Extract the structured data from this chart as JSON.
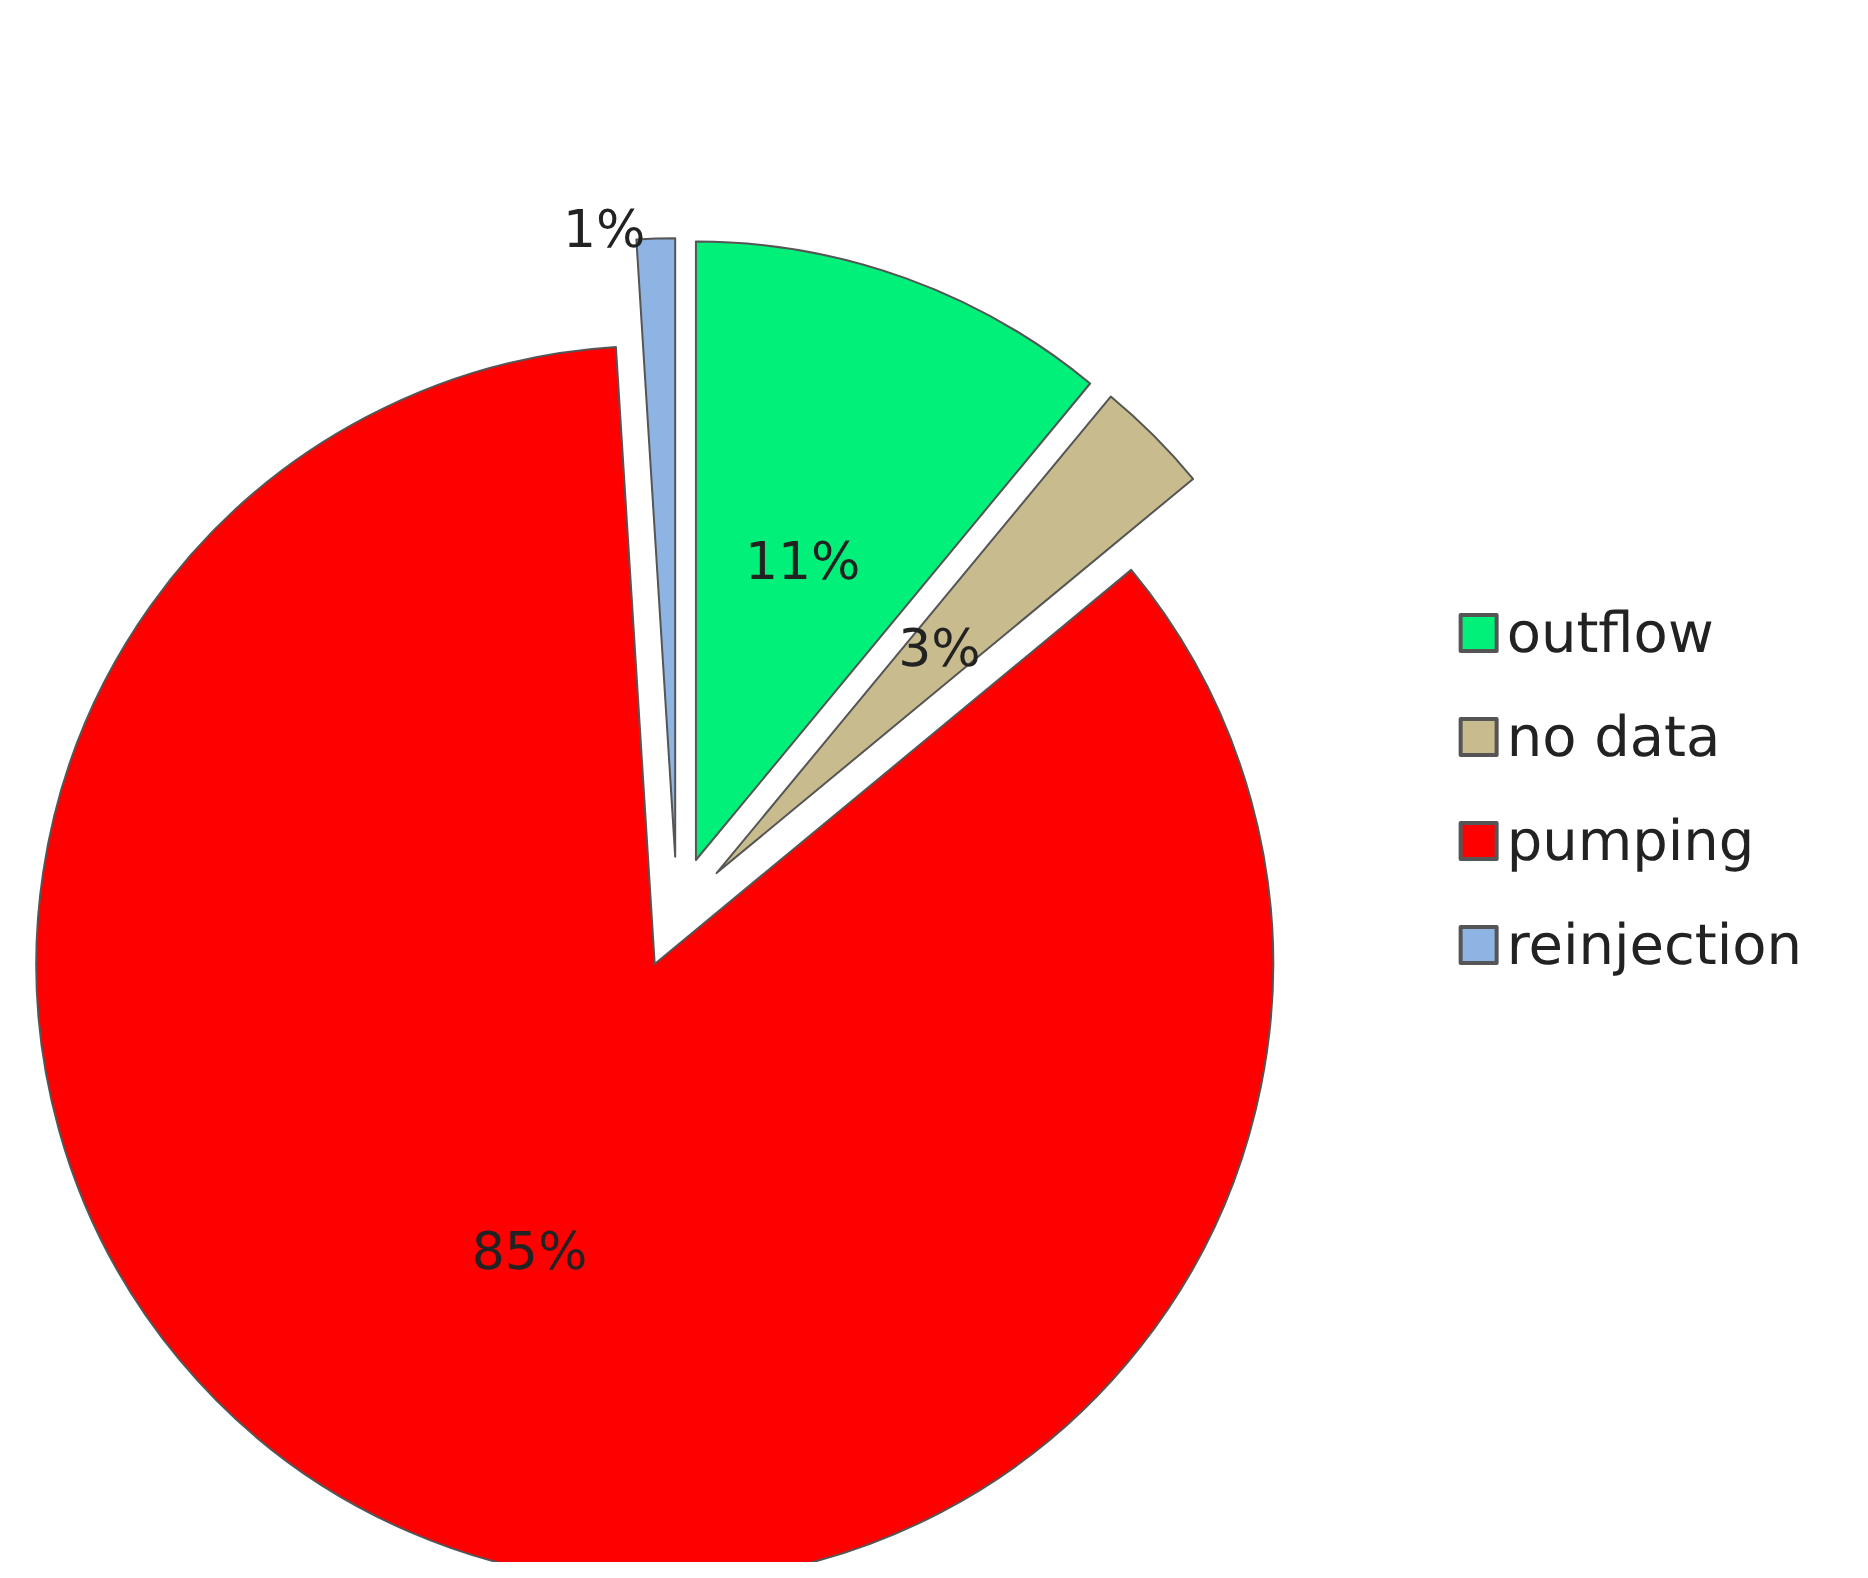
{
  "chart_data": {
    "type": "pie",
    "categories": [
      "outflow",
      "no data",
      "pumping",
      "reinjection"
    ],
    "values": [
      11,
      3,
      85,
      1
    ],
    "colors": [
      "#00f07a",
      "#c8bc8e",
      "#ff0000",
      "#8eb4e3"
    ],
    "value_labels": [
      "11%",
      "3%",
      "85%",
      "1%"
    ],
    "legend": "right"
  }
}
